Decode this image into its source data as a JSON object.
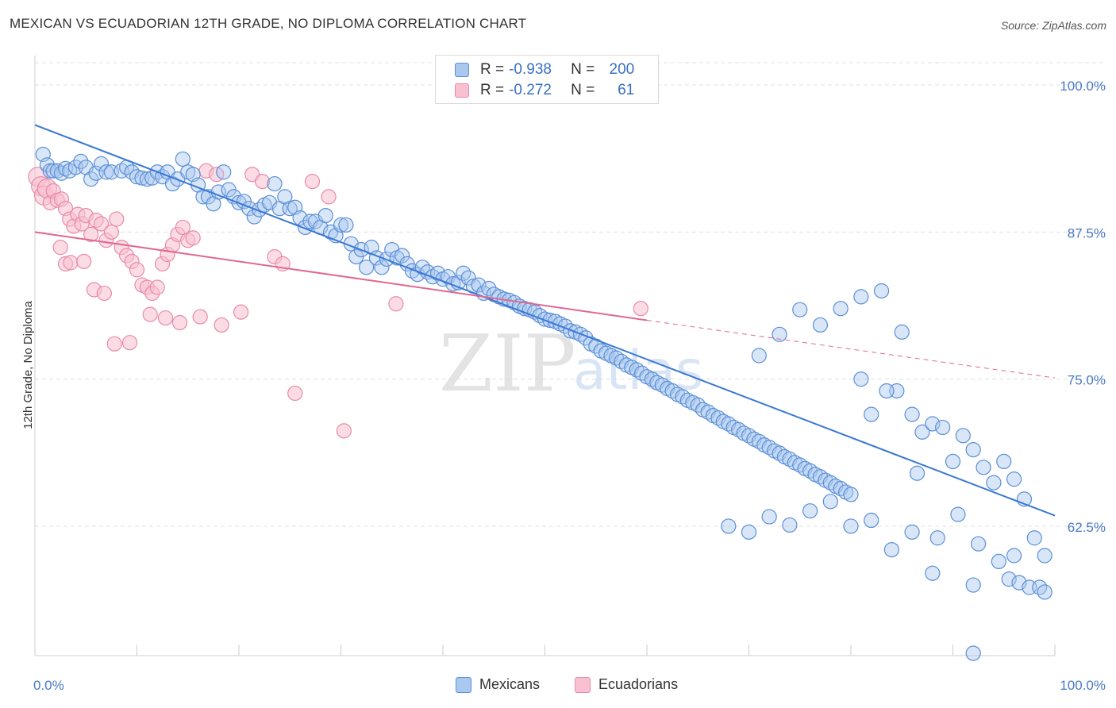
{
  "title": "MEXICAN VS ECUADORIAN 12TH GRADE, NO DIPLOMA CORRELATION CHART",
  "source": "Source: ZipAtlas.com",
  "watermark": {
    "zip": "ZIP",
    "atlas": "atlas"
  },
  "legend": {
    "rows": [
      {
        "r_label": "R =",
        "r_value": "-0.938",
        "n_label": "N =",
        "n_value": "200"
      },
      {
        "r_label": "R =",
        "r_value": "-0.272",
        "n_label": "N =",
        "n_value": "61"
      }
    ]
  },
  "bottom_legend": {
    "mexicans": "Mexicans",
    "ecuadorians": "Ecuadorians"
  },
  "colors": {
    "blue_fill": "#a8c8f0",
    "blue_stroke": "#5b8fd6",
    "blue_line": "#3a78d4",
    "pink_fill": "#f8c0d0",
    "pink_stroke": "#e88aa8",
    "pink_line": "#e06890",
    "tick_text": "#4a78c8",
    "grid": "#e0e0e0"
  },
  "chart_data": {
    "type": "scatter",
    "title": "MEXICAN VS ECUADORIAN 12TH GRADE, NO DIPLOMA CORRELATION CHART",
    "xlabel": "",
    "ylabel": "12th Grade, No Diploma",
    "xlim": [
      0,
      100
    ],
    "ylim": [
      51.5,
      102.5
    ],
    "x_tick_labels": [
      "0.0%",
      "100.0%"
    ],
    "y_ticks": [
      100.0,
      87.5,
      75.0,
      62.5
    ],
    "y_tick_labels": [
      "100.0%",
      "87.5%",
      "75.0%",
      "62.5%"
    ],
    "grid": "horizontal dashed",
    "series": [
      {
        "name": "Mexicans",
        "r": -0.938,
        "n": 200,
        "trend": {
          "x": [
            0,
            100
          ],
          "y": [
            96.6,
            63.4
          ]
        },
        "points": [
          [
            0.8,
            94.1
          ],
          [
            1.2,
            93.2
          ],
          [
            1.5,
            92.7
          ],
          [
            1.8,
            92.7
          ],
          [
            2.2,
            92.7
          ],
          [
            2.6,
            92.5
          ],
          [
            3.0,
            92.9
          ],
          [
            3.4,
            92.7
          ],
          [
            4.0,
            93.0
          ],
          [
            4.5,
            93.5
          ],
          [
            5.0,
            93.0
          ],
          [
            5.5,
            92.0
          ],
          [
            6.0,
            92.5
          ],
          [
            6.5,
            93.3
          ],
          [
            7.0,
            92.6
          ],
          [
            7.5,
            92.6
          ],
          [
            8.5,
            92.7
          ],
          [
            9.0,
            93.0
          ],
          [
            9.5,
            92.6
          ],
          [
            10.0,
            92.2
          ],
          [
            10.5,
            92.1
          ],
          [
            11.0,
            92.0
          ],
          [
            11.5,
            92.1
          ],
          [
            12.0,
            92.6
          ],
          [
            12.5,
            92.2
          ],
          [
            13.0,
            92.6
          ],
          [
            13.5,
            91.6
          ],
          [
            14.0,
            92.0
          ],
          [
            14.5,
            93.7
          ],
          [
            15.0,
            92.6
          ],
          [
            15.5,
            92.4
          ],
          [
            16.0,
            91.5
          ],
          [
            16.5,
            90.5
          ],
          [
            17.0,
            90.5
          ],
          [
            17.5,
            89.9
          ],
          [
            18.0,
            90.9
          ],
          [
            18.5,
            92.6
          ],
          [
            19.0,
            91.1
          ],
          [
            19.5,
            90.5
          ],
          [
            20.0,
            90.0
          ],
          [
            20.5,
            90.1
          ],
          [
            21.0,
            89.5
          ],
          [
            21.5,
            88.8
          ],
          [
            22.0,
            89.4
          ],
          [
            22.5,
            89.8
          ],
          [
            23.0,
            90.0
          ],
          [
            23.5,
            91.6
          ],
          [
            24.0,
            89.5
          ],
          [
            24.5,
            90.5
          ],
          [
            25.0,
            89.5
          ],
          [
            25.5,
            89.6
          ],
          [
            26.0,
            88.7
          ],
          [
            26.5,
            87.9
          ],
          [
            27.0,
            88.4
          ],
          [
            27.5,
            88.4
          ],
          [
            28.0,
            87.9
          ],
          [
            28.5,
            88.9
          ],
          [
            29.0,
            87.5
          ],
          [
            29.5,
            87.2
          ],
          [
            30.0,
            88.1
          ],
          [
            30.5,
            88.1
          ],
          [
            31.0,
            86.5
          ],
          [
            31.5,
            85.4
          ],
          [
            32.0,
            86.0
          ],
          [
            32.5,
            84.5
          ],
          [
            33.0,
            86.2
          ],
          [
            33.5,
            85.3
          ],
          [
            34.0,
            84.5
          ],
          [
            34.5,
            85.2
          ],
          [
            35.0,
            86.0
          ],
          [
            35.5,
            85.3
          ],
          [
            36.0,
            85.5
          ],
          [
            36.5,
            84.8
          ],
          [
            37.0,
            84.2
          ],
          [
            37.5,
            83.9
          ],
          [
            38.0,
            84.5
          ],
          [
            38.5,
            84.1
          ],
          [
            39.0,
            83.7
          ],
          [
            39.5,
            84.0
          ],
          [
            40.0,
            83.5
          ],
          [
            40.5,
            83.7
          ],
          [
            41.0,
            83.1
          ],
          [
            41.5,
            83.2
          ],
          [
            42.0,
            84.0
          ],
          [
            42.5,
            83.6
          ],
          [
            43.0,
            82.9
          ],
          [
            43.5,
            83.0
          ],
          [
            44.0,
            82.3
          ],
          [
            44.5,
            82.7
          ],
          [
            45.0,
            82.2
          ],
          [
            45.5,
            82.0
          ],
          [
            46.0,
            81.8
          ],
          [
            46.5,
            81.7
          ],
          [
            47.0,
            81.5
          ],
          [
            47.5,
            81.2
          ],
          [
            48.0,
            81.0
          ],
          [
            48.5,
            80.9
          ],
          [
            49.0,
            80.7
          ],
          [
            49.5,
            80.4
          ],
          [
            50.0,
            80.1
          ],
          [
            50.5,
            80.0
          ],
          [
            51.0,
            79.9
          ],
          [
            51.5,
            79.7
          ],
          [
            52.0,
            79.5
          ],
          [
            52.5,
            79.1
          ],
          [
            53.0,
            79.0
          ],
          [
            53.5,
            78.8
          ],
          [
            54.0,
            78.5
          ],
          [
            54.5,
            78.0
          ],
          [
            55.0,
            77.8
          ],
          [
            55.5,
            77.4
          ],
          [
            56.0,
            77.2
          ],
          [
            56.5,
            77.0
          ],
          [
            57.0,
            76.8
          ],
          [
            57.5,
            76.5
          ],
          [
            58.0,
            76.2
          ],
          [
            58.5,
            76.0
          ],
          [
            59.0,
            75.8
          ],
          [
            59.5,
            75.5
          ],
          [
            60.0,
            75.2
          ],
          [
            60.5,
            75.0
          ],
          [
            61.0,
            74.7
          ],
          [
            61.5,
            74.5
          ],
          [
            62.0,
            74.2
          ],
          [
            62.5,
            74.0
          ],
          [
            63.0,
            73.7
          ],
          [
            63.5,
            73.5
          ],
          [
            64.0,
            73.2
          ],
          [
            64.5,
            73.0
          ],
          [
            65.0,
            72.8
          ],
          [
            65.5,
            72.4
          ],
          [
            66.0,
            72.2
          ],
          [
            66.5,
            71.9
          ],
          [
            67.0,
            71.7
          ],
          [
            67.5,
            71.4
          ],
          [
            68.0,
            71.2
          ],
          [
            68.5,
            70.9
          ],
          [
            69.0,
            70.7
          ],
          [
            69.5,
            70.4
          ],
          [
            70.0,
            70.2
          ],
          [
            70.5,
            69.9
          ],
          [
            71.0,
            69.7
          ],
          [
            71.5,
            69.4
          ],
          [
            72.0,
            69.2
          ],
          [
            72.5,
            68.9
          ],
          [
            73.0,
            68.7
          ],
          [
            73.5,
            68.4
          ],
          [
            74.0,
            68.2
          ],
          [
            74.5,
            67.9
          ],
          [
            75.0,
            67.7
          ],
          [
            75.5,
            67.4
          ],
          [
            76.0,
            67.2
          ],
          [
            76.5,
            66.9
          ],
          [
            77.0,
            66.7
          ],
          [
            77.5,
            66.4
          ],
          [
            78.0,
            66.2
          ],
          [
            78.5,
            65.9
          ],
          [
            79.0,
            65.7
          ],
          [
            79.5,
            65.4
          ],
          [
            80.0,
            65.2
          ],
          [
            71.0,
            77.0
          ],
          [
            73.0,
            78.8
          ],
          [
            75.0,
            80.9
          ],
          [
            77.0,
            79.6
          ],
          [
            79.0,
            81.0
          ],
          [
            81.0,
            82.0
          ],
          [
            83.0,
            82.5
          ],
          [
            85.0,
            79.0
          ],
          [
            84.5,
            74.0
          ],
          [
            86.0,
            72.0
          ],
          [
            87.0,
            70.5
          ],
          [
            88.0,
            71.2
          ],
          [
            89.0,
            70.9
          ],
          [
            90.0,
            68.0
          ],
          [
            91.0,
            70.2
          ],
          [
            92.0,
            69.0
          ],
          [
            93.0,
            67.5
          ],
          [
            94.0,
            66.2
          ],
          [
            95.0,
            68.0
          ],
          [
            96.0,
            66.5
          ],
          [
            97.0,
            64.8
          ],
          [
            98.0,
            61.5
          ],
          [
            99.0,
            60.0
          ],
          [
            81.0,
            75.0
          ],
          [
            82.0,
            72.0
          ],
          [
            83.5,
            74.0
          ],
          [
            86.5,
            67.0
          ],
          [
            88.5,
            61.5
          ],
          [
            90.5,
            63.5
          ],
          [
            92.5,
            61.0
          ],
          [
            94.5,
            59.5
          ],
          [
            95.5,
            58.0
          ],
          [
            96.5,
            57.7
          ],
          [
            97.5,
            57.3
          ],
          [
            98.5,
            57.3
          ],
          [
            99.0,
            56.9
          ],
          [
            96.0,
            60.0
          ],
          [
            92.0,
            57.5
          ],
          [
            88.0,
            58.5
          ],
          [
            86.0,
            62.0
          ],
          [
            84.0,
            60.5
          ],
          [
            82.0,
            63.0
          ],
          [
            80.0,
            62.5
          ],
          [
            78.0,
            64.6
          ],
          [
            76.0,
            63.8
          ],
          [
            74.0,
            62.6
          ],
          [
            72.0,
            63.3
          ],
          [
            70.0,
            62.0
          ],
          [
            68.0,
            62.5
          ],
          [
            92.0,
            51.7
          ]
        ]
      },
      {
        "name": "Ecuadorians",
        "r": -0.272,
        "n": 61,
        "trend": {
          "x": [
            0,
            60
          ],
          "y": [
            87.5,
            80.0
          ]
        },
        "trend_extension": {
          "x": [
            60,
            100
          ],
          "y": [
            80.0,
            75.1
          ]
        },
        "points": [
          [
            0.3,
            92.2
          ],
          [
            0.6,
            91.4
          ],
          [
            0.9,
            90.6
          ],
          [
            1.2,
            91.2
          ],
          [
            1.5,
            90.0
          ],
          [
            1.8,
            91.0
          ],
          [
            2.2,
            90.2
          ],
          [
            2.6,
            90.3
          ],
          [
            3.0,
            89.5
          ],
          [
            3.4,
            88.6
          ],
          [
            3.8,
            88.0
          ],
          [
            4.2,
            89.0
          ],
          [
            4.6,
            88.2
          ],
          [
            5.0,
            88.9
          ],
          [
            5.5,
            87.3
          ],
          [
            6.0,
            88.5
          ],
          [
            6.5,
            88.2
          ],
          [
            7.0,
            86.8
          ],
          [
            7.5,
            87.5
          ],
          [
            8.0,
            88.6
          ],
          [
            8.5,
            86.2
          ],
          [
            9.0,
            85.5
          ],
          [
            9.5,
            85.0
          ],
          [
            10.0,
            84.3
          ],
          [
            10.5,
            83.0
          ],
          [
            11.0,
            82.8
          ],
          [
            11.5,
            82.3
          ],
          [
            12.0,
            82.8
          ],
          [
            12.5,
            84.8
          ],
          [
            13.0,
            85.6
          ],
          [
            13.5,
            86.4
          ],
          [
            14.0,
            87.3
          ],
          [
            14.5,
            87.9
          ],
          [
            15.0,
            86.8
          ],
          [
            15.5,
            87.0
          ],
          [
            2.5,
            86.2
          ],
          [
            3.0,
            84.8
          ],
          [
            3.5,
            84.9
          ],
          [
            4.8,
            85.0
          ],
          [
            5.8,
            82.6
          ],
          [
            6.8,
            82.3
          ],
          [
            7.8,
            78.0
          ],
          [
            9.3,
            78.1
          ],
          [
            11.3,
            80.5
          ],
          [
            12.8,
            80.2
          ],
          [
            14.2,
            79.8
          ],
          [
            16.2,
            80.3
          ],
          [
            18.3,
            79.6
          ],
          [
            20.2,
            80.7
          ],
          [
            21.3,
            92.4
          ],
          [
            22.3,
            91.8
          ],
          [
            23.5,
            85.4
          ],
          [
            24.3,
            84.8
          ],
          [
            25.5,
            73.8
          ],
          [
            27.2,
            91.8
          ],
          [
            28.8,
            90.5
          ],
          [
            30.3,
            70.6
          ],
          [
            35.4,
            81.4
          ],
          [
            59.4,
            81.0
          ],
          [
            16.8,
            92.7
          ],
          [
            17.8,
            92.4
          ]
        ]
      }
    ]
  }
}
